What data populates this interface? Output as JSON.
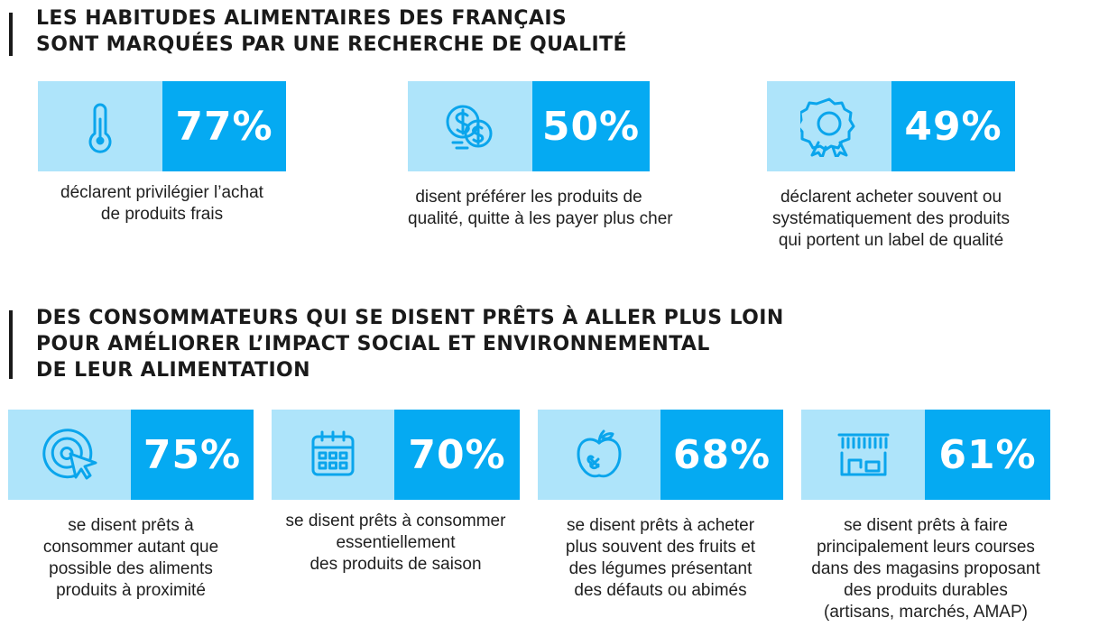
{
  "colors": {
    "light_blue": "#aee4fa",
    "blue": "#05aaf2",
    "icon_stroke": "#0aa5ec",
    "text": "#1a1a1a"
  },
  "section1": {
    "title_lines": [
      "LES HABITUDES ALIMENTAIRES DES FRANÇAIS",
      "SONT MARQUÉES PAR UNE RECHERCHE DE QUALITÉ"
    ],
    "stats": [
      {
        "icon": "thermometer-icon",
        "value": "77%",
        "desc_lines": [
          "déclarent privilégier l’achat",
          "de produits frais"
        ]
      },
      {
        "icon": "coins-icon",
        "value": "50%",
        "desc_lines": [
          "disent préférer les produits de",
          "qualité, quitte à les payer plus cher"
        ]
      },
      {
        "icon": "badge-icon",
        "value": "49%",
        "desc_lines": [
          "déclarent acheter souvent ou",
          "systématiquement des produits",
          "qui portent un label de qualité"
        ]
      }
    ]
  },
  "section2": {
    "title_lines": [
      "DES CONSOMMATEURS QUI SE DISENT PRÊTS À ALLER PLUS LOIN",
      "POUR AMÉLIORER L’IMPACT SOCIAL ET ENVIRONNEMENTAL",
      "DE LEUR ALIMENTATION"
    ],
    "stats": [
      {
        "icon": "target-cursor-icon",
        "value": "75%",
        "desc_lines": [
          "se disent prêts à",
          "consommer autant que",
          "possible des aliments",
          "produits à proximité"
        ]
      },
      {
        "icon": "calendar-icon",
        "value": "70%",
        "desc_lines": [
          "se disent prêts à consommer",
          "essentiellement",
          "des produits de saison"
        ]
      },
      {
        "icon": "damaged-apple-icon",
        "value": "68%",
        "desc_lines": [
          "se disent prêts à acheter",
          "plus souvent des fruits et",
          "des légumes présentant",
          "des défauts ou abimés"
        ]
      },
      {
        "icon": "shop-icon",
        "value": "61%",
        "desc_lines": [
          "se disent prêts à faire",
          "principalement leurs courses",
          "dans des magasins proposant",
          "des produits durables",
          "(artisans, marchés, AMAP)"
        ]
      }
    ]
  }
}
